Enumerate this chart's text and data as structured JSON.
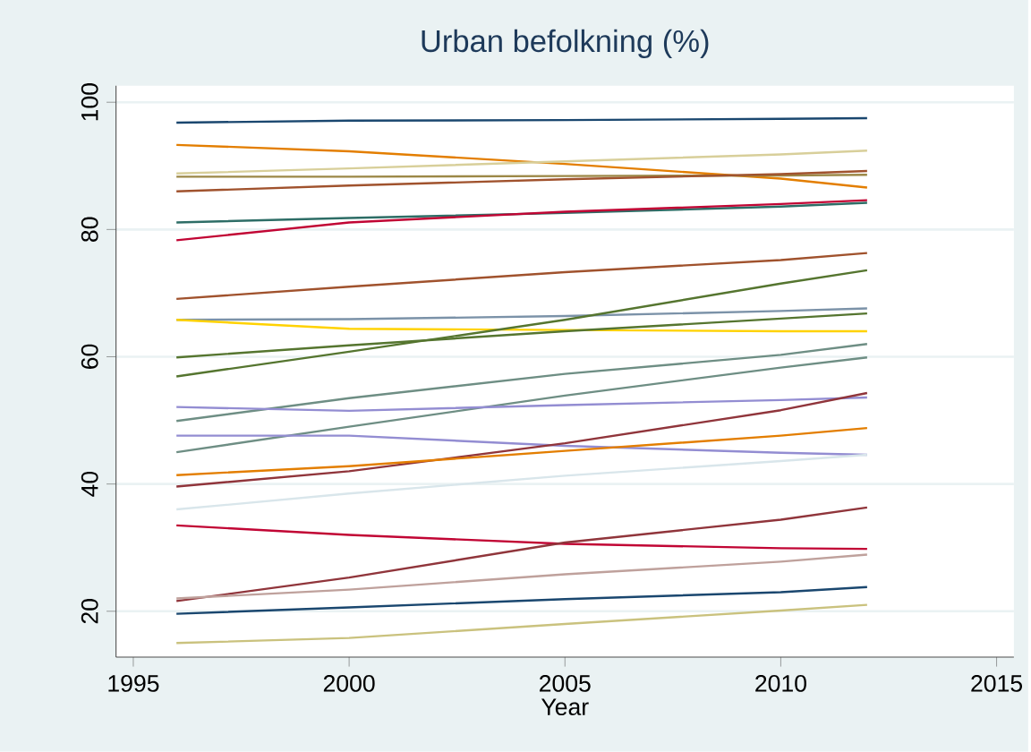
{
  "chart_data": {
    "type": "line",
    "title": "Urban befolkning (%)",
    "xlabel": "Year",
    "x": [
      1996,
      2000,
      2005,
      2010,
      2012
    ],
    "xlim": [
      1994.6,
      2015.4
    ],
    "xticks": [
      1995,
      2000,
      2005,
      2010,
      2015
    ],
    "ylim": [
      12.8,
      102.6
    ],
    "yticks": [
      20,
      40,
      60,
      80,
      100
    ],
    "grid": "y",
    "series": [
      {
        "color": "#1a476f",
        "values": [
          96.8,
          97.1,
          97.2,
          97.4,
          97.5
        ]
      },
      {
        "color": "#e37e00",
        "values": [
          93.3,
          92.3,
          90.3,
          88.0,
          86.6
        ]
      },
      {
        "color": "#d8cf9a",
        "values": [
          88.8,
          89.6,
          90.7,
          91.8,
          92.4
        ]
      },
      {
        "color": "#9c8847",
        "values": [
          88.3,
          88.3,
          88.4,
          88.5,
          88.6
        ]
      },
      {
        "color": "#a0522d",
        "values": [
          86.0,
          86.9,
          87.9,
          88.7,
          89.2
        ]
      },
      {
        "color": "#2d6d66",
        "values": [
          81.1,
          81.8,
          82.6,
          83.6,
          84.2
        ]
      },
      {
        "color": "#c10534",
        "values": [
          78.3,
          81.1,
          82.8,
          84.0,
          84.6
        ]
      },
      {
        "color": "#a0522d",
        "values": [
          69.1,
          71.0,
          73.3,
          75.2,
          76.3
        ]
      },
      {
        "color": "#7b92a8",
        "values": [
          65.8,
          65.9,
          66.4,
          67.2,
          67.6
        ]
      },
      {
        "color": "#ffd200",
        "values": [
          65.8,
          64.4,
          64.2,
          64.0,
          64.0
        ]
      },
      {
        "color": "#55752f",
        "values": [
          56.9,
          60.8,
          65.8,
          71.5,
          73.6
        ]
      },
      {
        "color": "#55752f",
        "values": [
          59.9,
          61.8,
          64.0,
          66.0,
          66.8
        ]
      },
      {
        "color": "#6e8e84",
        "values": [
          49.9,
          53.5,
          57.3,
          60.3,
          62.0
        ]
      },
      {
        "color": "#6e8e84",
        "values": [
          45.0,
          49.0,
          53.9,
          58.3,
          59.9
        ]
      },
      {
        "color": "#938dd2",
        "values": [
          52.1,
          51.5,
          52.4,
          53.2,
          53.6
        ]
      },
      {
        "color": "#938dd2",
        "values": [
          47.6,
          47.6,
          46.0,
          44.9,
          44.6
        ]
      },
      {
        "color": "#90353b",
        "values": [
          39.6,
          42.0,
          46.4,
          51.6,
          54.3
        ]
      },
      {
        "color": "#e37e00",
        "values": [
          41.4,
          42.8,
          45.2,
          47.6,
          48.8
        ]
      },
      {
        "color": "#d9e6eb",
        "values": [
          36.0,
          38.5,
          41.3,
          43.6,
          44.6
        ]
      },
      {
        "color": "#c10534",
        "values": [
          33.5,
          32.0,
          30.6,
          29.9,
          29.8
        ]
      },
      {
        "color": "#90353b",
        "values": [
          21.6,
          25.3,
          30.8,
          34.4,
          36.3
        ]
      },
      {
        "color": "#bfa19c",
        "values": [
          22.0,
          23.4,
          25.8,
          27.8,
          28.9
        ]
      },
      {
        "color": "#1a476f",
        "values": [
          19.6,
          20.6,
          21.9,
          23.0,
          23.8
        ]
      },
      {
        "color": "#cac27e",
        "values": [
          15.0,
          15.8,
          18.0,
          20.1,
          21.0
        ]
      }
    ]
  }
}
